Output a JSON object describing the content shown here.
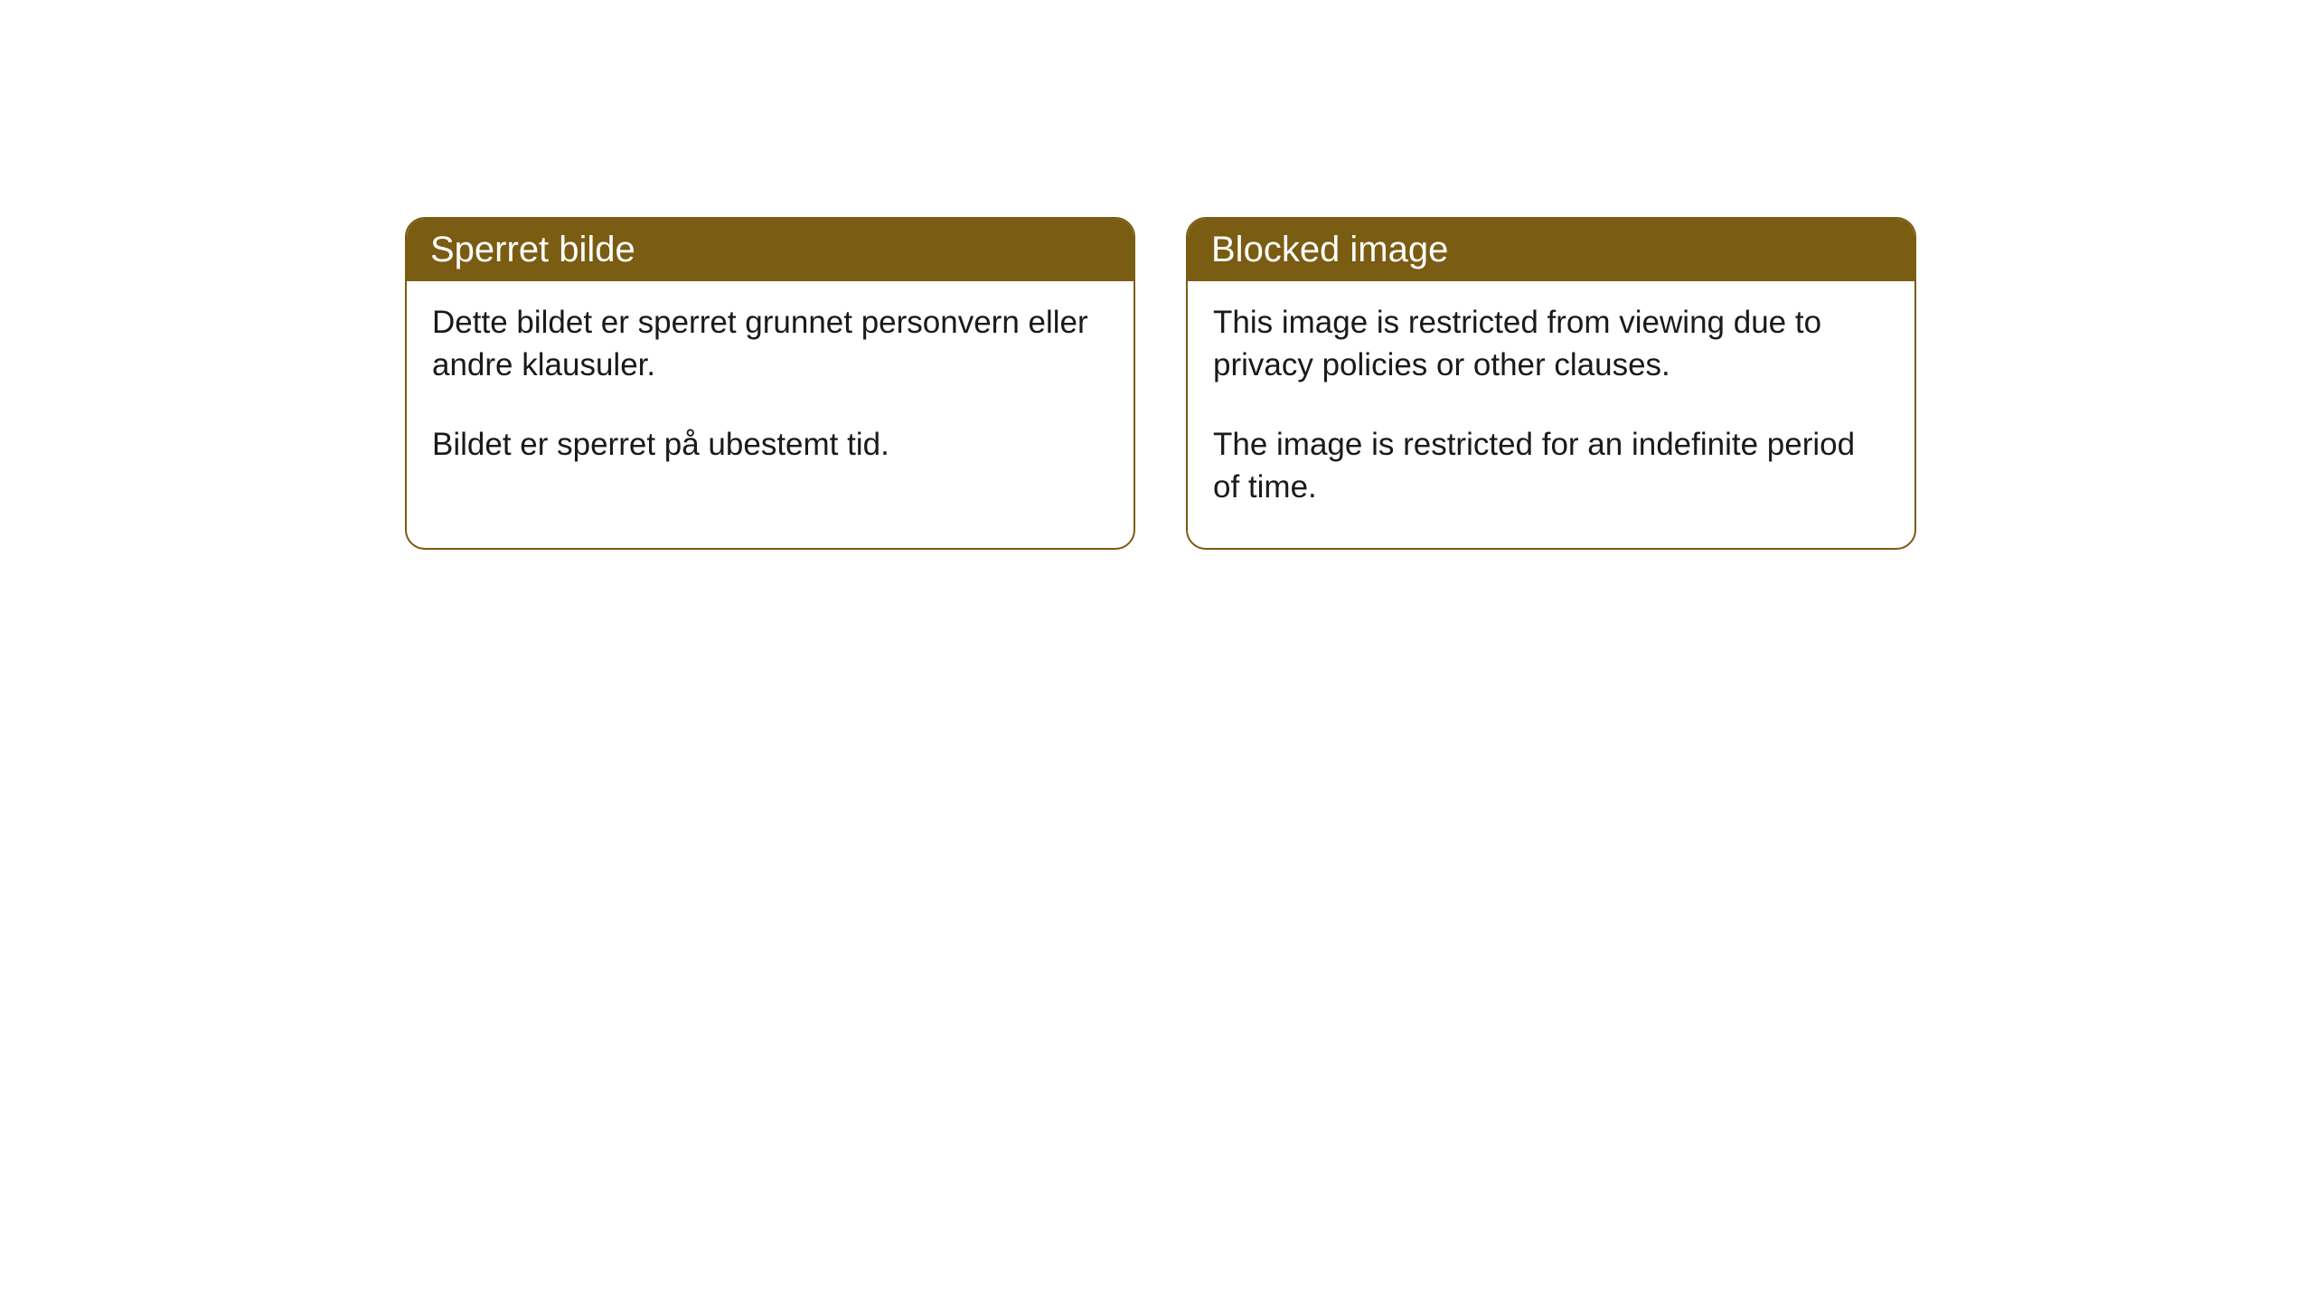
{
  "cards": [
    {
      "title": "Sperret bilde",
      "para1": "Dette bildet er sperret grunnet personvern eller andre klausuler.",
      "para2": "Bildet er sperret på ubestemt tid."
    },
    {
      "title": "Blocked image",
      "para1": "This image is restricted from viewing due to privacy policies or other clauses.",
      "para2": "The image is restricted for an indefinite period of time."
    }
  ],
  "style": {
    "header_bg_color": "#7a5c12",
    "header_text_color": "#ffffff",
    "border_color": "#7a5c12",
    "body_text_color": "#1a1a1a",
    "background_color": "#ffffff",
    "title_fontsize": 40,
    "body_fontsize": 35,
    "border_radius": 22
  }
}
